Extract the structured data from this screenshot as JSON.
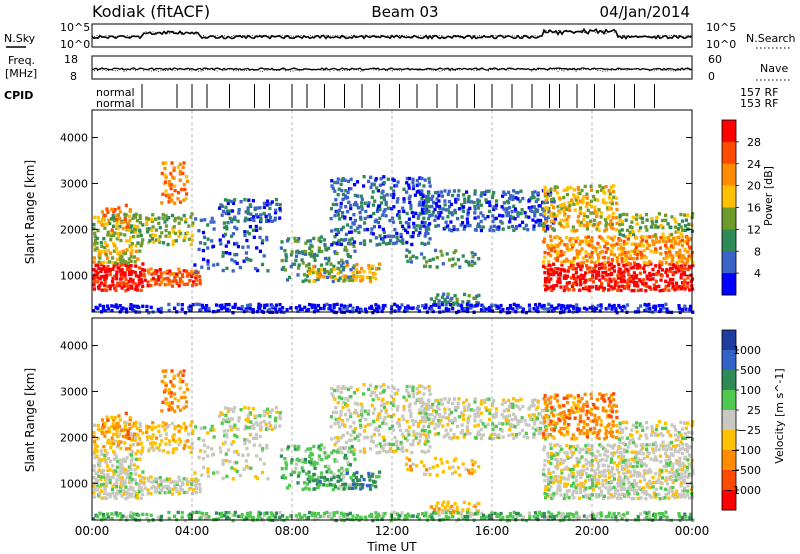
{
  "header": {
    "station": "Kodiak (fitACF)",
    "beam": "Beam 03",
    "date": "04/Jan/2014"
  },
  "noise_panel": {
    "left_label": "N.Sky",
    "right_label": "N.Search",
    "left_ticks": [
      "10^5",
      "10^0"
    ],
    "right_ticks": [
      "10^5",
      "10^0"
    ]
  },
  "freq_panel": {
    "left_label_line1": "Freq.",
    "left_label_line2": "[MHz]",
    "right_label": "Nave",
    "left_ticks": [
      "18",
      "8"
    ],
    "right_ticks": [
      "60",
      "0"
    ]
  },
  "cpid": {
    "label": "CPID",
    "row1_start": "normal",
    "row2_start": "normal",
    "row1_end": "157 RF",
    "row2_end": "153 RF"
  },
  "chart_data": [
    {
      "type": "heatmap",
      "name": "power",
      "ylabel": "Slant Range [km]",
      "xlabel": "Time UT",
      "x_ticks": [
        "00:00",
        "04:00",
        "08:00",
        "12:00",
        "16:00",
        "20:00",
        "00:00"
      ],
      "y_ticks": [
        1000,
        2000,
        3000,
        4000
      ],
      "ylim": [
        200,
        4600
      ],
      "xlim_hours": [
        0,
        24
      ],
      "colorbar": {
        "label": "Power [dB]",
        "ticks": [
          "28",
          "24",
          "20",
          "16",
          "12",
          "8",
          "4"
        ],
        "colors": [
          "#ff0000",
          "#ff4a00",
          "#ff8c00",
          "#ffc000",
          "#6e9c2c",
          "#2e8b57",
          "#3c64c8",
          "#0000ff"
        ]
      }
    },
    {
      "type": "heatmap",
      "name": "velocity",
      "ylabel": "Slant Range [km]",
      "x_ticks": [
        "00:00",
        "04:00",
        "08:00",
        "12:00",
        "16:00",
        "20:00",
        "00:00"
      ],
      "y_ticks": [
        1000,
        2000,
        3000,
        4000
      ],
      "ylim": [
        200,
        4600
      ],
      "colorbar": {
        "label": "Velocity [m s^-1]",
        "ticks": [
          "1000",
          "500",
          "100",
          "25",
          "−25",
          "−100",
          "−500",
          "−1000"
        ],
        "colors": [
          "#1e3ca0",
          "#3264c8",
          "#2e8b57",
          "#50c850",
          "#c8c8c0",
          "#ffc000",
          "#ff8c00",
          "#ff4a00",
          "#ff0000"
        ]
      }
    }
  ]
}
